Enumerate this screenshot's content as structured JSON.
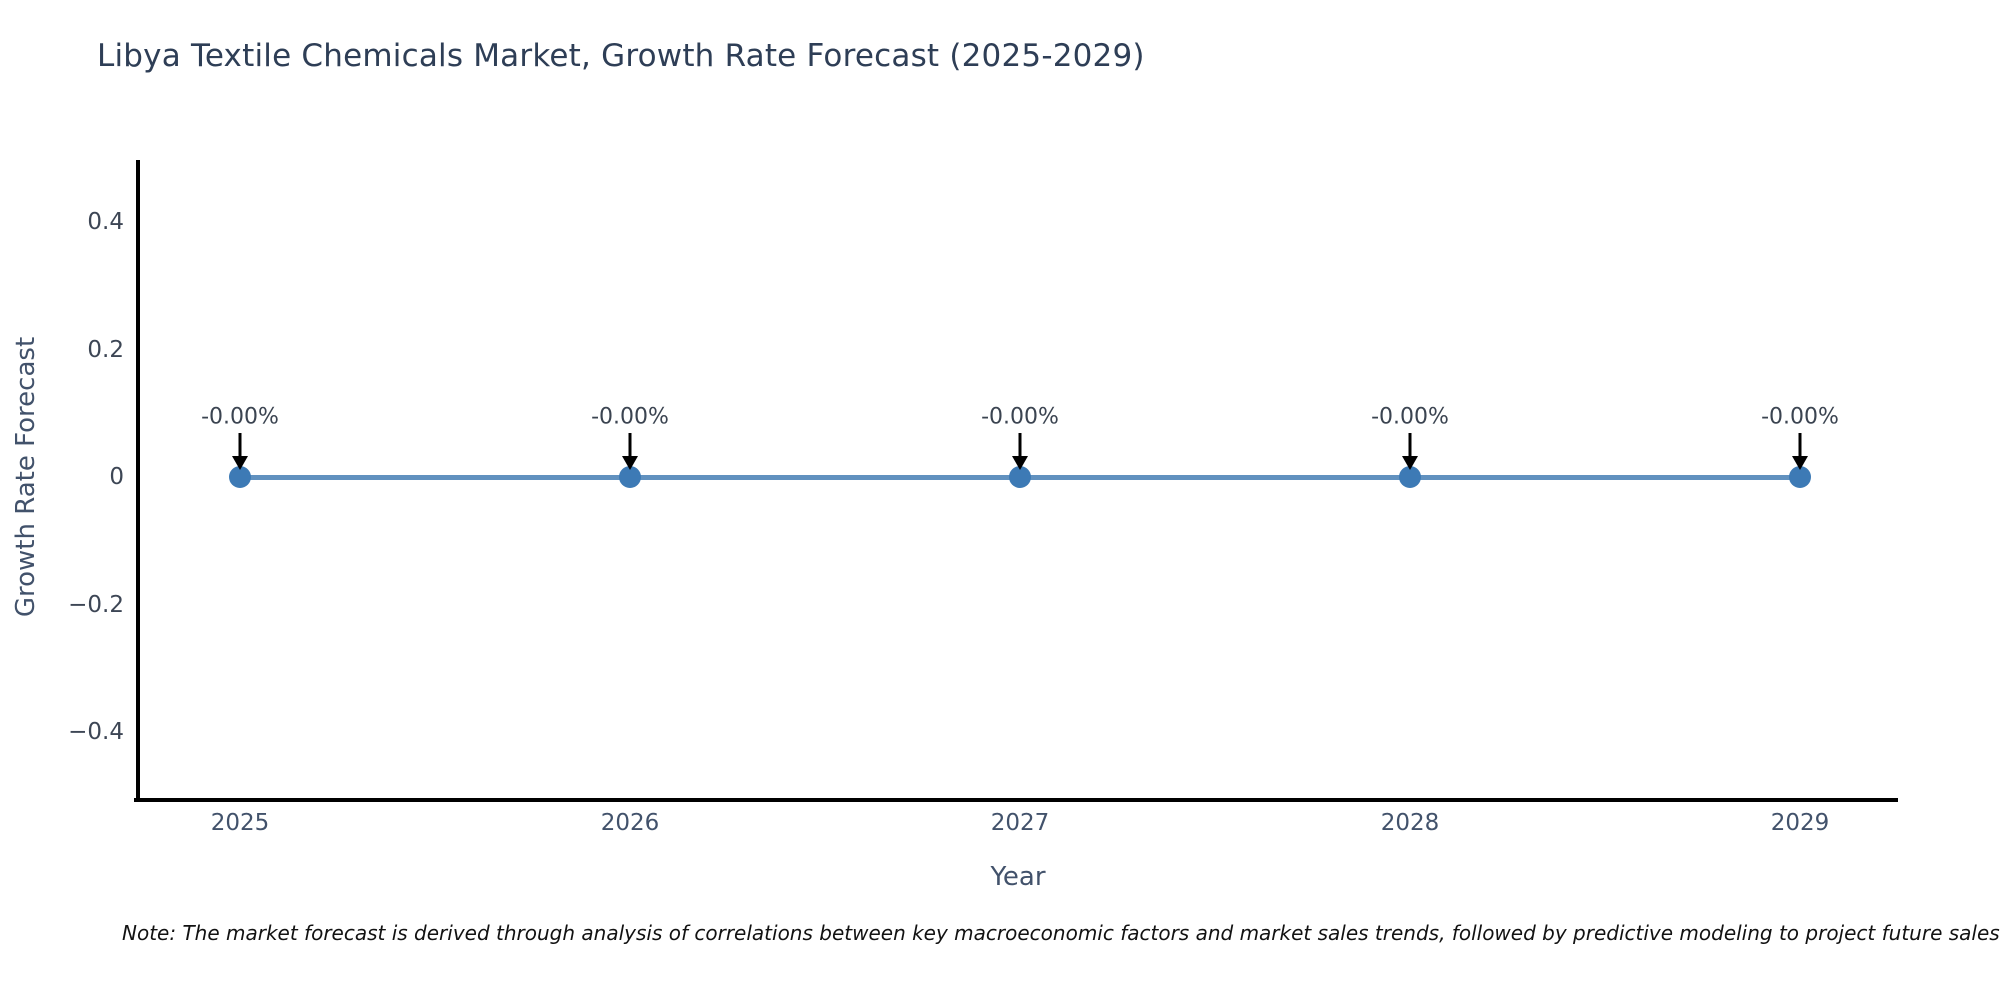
{
  "title": "Libya Textile Chemicals Market, Growth Rate Forecast (2025-2029)",
  "x_axis": {
    "label": "Year",
    "ticks": [
      "2025",
      "2026",
      "2027",
      "2028",
      "2029"
    ]
  },
  "y_axis": {
    "label": "Growth Rate Forecast",
    "ticks": [
      "0.4",
      "0.2",
      "0",
      "−0.2",
      "−0.4"
    ]
  },
  "note": "Note: The market forecast is derived through analysis of correlations between key macroeconomic factors and market sales trends, followed by predictive modeling to project future sales.",
  "colors": {
    "line": "#6191bf",
    "marker": "#3d7ab5",
    "axis": "#000000",
    "title": "#2e3e56",
    "tick": "#42526b",
    "annotation": "#3b4451"
  },
  "chart_data": {
    "type": "line",
    "x": [
      2025,
      2026,
      2027,
      2028,
      2029
    ],
    "values": [
      0,
      0,
      0,
      0,
      0
    ],
    "annotations": [
      "-0.00%",
      "-0.00%",
      "-0.00%",
      "-0.00%",
      "-0.00%"
    ],
    "title": "Libya Textile Chemicals Market, Growth Rate Forecast (2025-2029)",
    "xlabel": "Year",
    "ylabel": "Growth Rate Forecast",
    "xlim": [
      2024.74,
      2029.25
    ],
    "ylim": [
      -0.5,
      0.5
    ],
    "grid": false,
    "legend": false,
    "marker_style": "circle",
    "annotation_arrow": "down"
  }
}
